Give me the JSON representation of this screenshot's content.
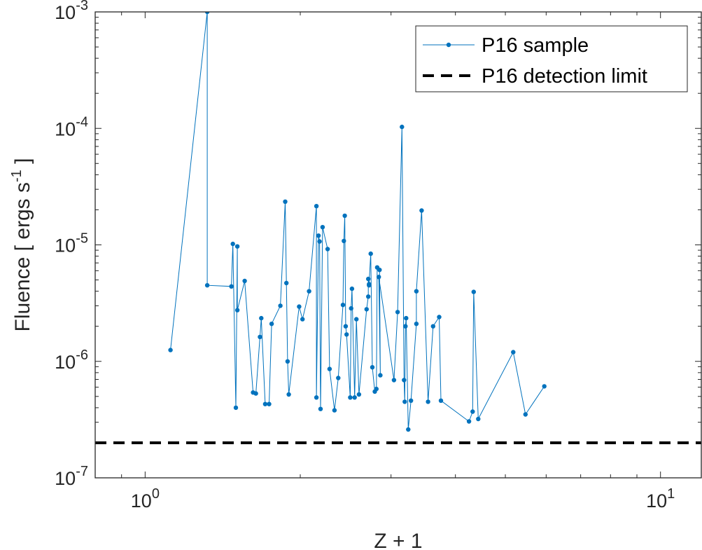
{
  "chart_data": {
    "type": "line",
    "xlabel": "Z + 1",
    "ylabel_main": "Fluence [ ergs s",
    "ylabel_sup": "-1",
    "ylabel_end": " ]",
    "xscale": "log",
    "yscale": "log",
    "xlim": [
      0.8,
      12
    ],
    "ylim": [
      1e-07,
      0.001
    ],
    "grid": false,
    "legend_position": "top-right",
    "x_ticks": [
      {
        "value": 1,
        "base": "10",
        "exp": "0"
      },
      {
        "value": 10,
        "base": "10",
        "exp": "1"
      }
    ],
    "y_ticks": [
      {
        "value": 1e-07,
        "base": "10",
        "exp": "-7"
      },
      {
        "value": 1e-06,
        "base": "10",
        "exp": "-6"
      },
      {
        "value": 1e-05,
        "base": "10",
        "exp": "-5"
      },
      {
        "value": 0.0001,
        "base": "10",
        "exp": "-4"
      },
      {
        "value": 0.001,
        "base": "10",
        "exp": "-3"
      }
    ],
    "series": [
      {
        "name": "P16 sample",
        "color": "#0072BD",
        "x": [
          1.12,
          1.32,
          1.32,
          1.47,
          1.48,
          1.5,
          1.51,
          1.51,
          1.56,
          1.62,
          1.64,
          1.67,
          1.68,
          1.71,
          1.74,
          1.76,
          1.83,
          1.87,
          1.88,
          1.89,
          1.9,
          1.99,
          2.02,
          2.08,
          2.15,
          2.15,
          2.17,
          2.18,
          2.19,
          2.21,
          2.26,
          2.28,
          2.33,
          2.37,
          2.42,
          2.43,
          2.44,
          2.45,
          2.46,
          2.5,
          2.51,
          2.52,
          2.55,
          2.57,
          2.6,
          2.69,
          2.71,
          2.71,
          2.72,
          2.72,
          2.74,
          2.76,
          2.79,
          2.81,
          2.82,
          2.85,
          2.86,
          2.84,
          3.04,
          3.09,
          3.15,
          3.18,
          3.19,
          3.2,
          3.21,
          3.24,
          3.28,
          3.36,
          3.36,
          3.44,
          3.54,
          3.62,
          3.72,
          3.75,
          4.25,
          4.32,
          4.34,
          4.43,
          5.18,
          5.47,
          5.95
        ],
        "y": [
          1.25e-06,
          0.001,
          4.5e-06,
          4.4e-06,
          1.02e-05,
          4e-07,
          9.7e-06,
          2.75e-06,
          4.9e-06,
          5.4e-07,
          5.3e-07,
          1.62e-06,
          2.35e-06,
          4.3e-07,
          4.3e-07,
          2.1e-06,
          3e-06,
          2.35e-05,
          4.7e-06,
          1e-06,
          5.2e-07,
          2.95e-06,
          2.3e-06,
          4e-06,
          2.15e-05,
          4.9e-07,
          1.2e-05,
          1.07e-05,
          3.9e-07,
          1.42e-05,
          9.2e-06,
          8.6e-07,
          3.8e-07,
          7.2e-07,
          3.05e-06,
          1.08e-05,
          1.78e-05,
          2e-06,
          1.7e-06,
          4.9e-07,
          2.85e-06,
          4.2e-06,
          4.9e-07,
          2.3e-06,
          5.2e-07,
          2.8e-06,
          3.6e-06,
          5.1e-06,
          4.5e-06,
          4.6e-06,
          8.4e-06,
          8.9e-07,
          5.5e-07,
          5.8e-07,
          6.4e-06,
          6.1e-06,
          7.6e-07,
          5.3e-06,
          6.9e-07,
          2.65e-06,
          0.000103,
          6.9e-07,
          4.5e-07,
          2e-06,
          2.35e-06,
          2.6e-07,
          4.6e-07,
          2.1e-06,
          4e-06,
          1.97e-05,
          4.5e-07,
          2e-06,
          2.4e-06,
          4.6e-07,
          3.05e-07,
          3.7e-07,
          3.95e-06,
          3.2e-07,
          1.2e-06,
          3.5e-07,
          6.1e-07
        ]
      },
      {
        "name": "P16 detection limit",
        "color": "#000000",
        "constant_y": 2e-07,
        "style": "dashed"
      }
    ]
  }
}
